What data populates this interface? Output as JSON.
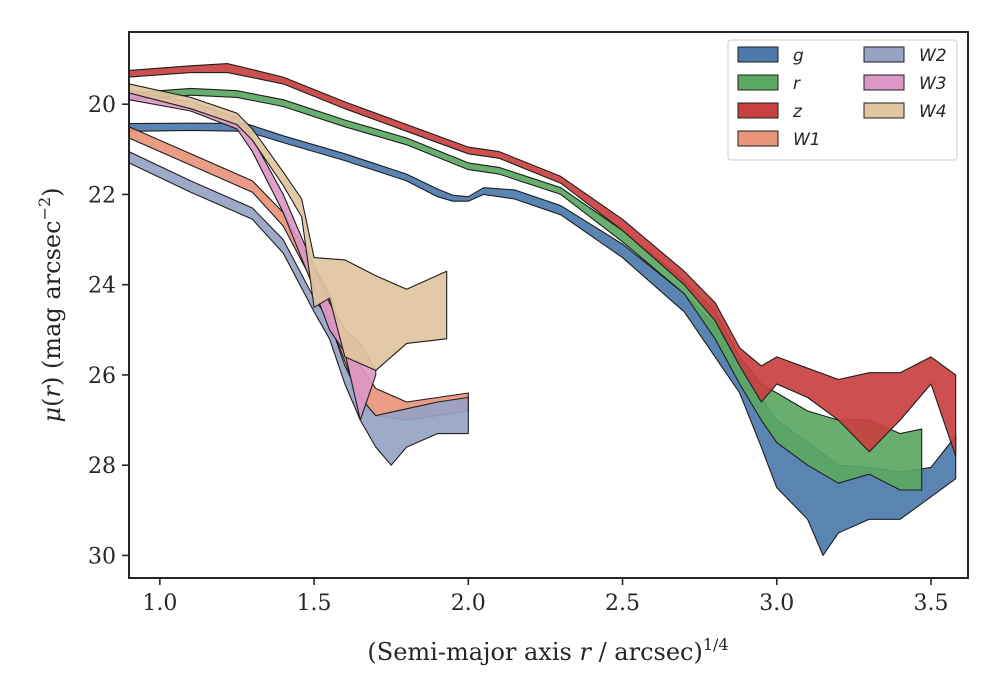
{
  "chart_data": {
    "type": "area",
    "xlabel": "(Semi-major axis r / arcsec)^{1/4}",
    "ylabel": "μ(r) (mag arcsec⁻²)",
    "xlim": [
      0.9,
      3.62
    ],
    "ylim": [
      30.5,
      18.4
    ],
    "y_inverted": true,
    "x_ticks": [
      "1.0",
      "1.5",
      "2.0",
      "2.5",
      "3.0",
      "3.5"
    ],
    "x_tick_values": [
      1.0,
      1.5,
      2.0,
      2.5,
      3.0,
      3.5
    ],
    "y_ticks": [
      "20",
      "22",
      "24",
      "26",
      "28",
      "30"
    ],
    "y_tick_values": [
      20,
      22,
      24,
      26,
      28,
      30
    ],
    "grid": false,
    "legend_position": "top-right",
    "legend_columns": 2,
    "series": [
      {
        "name": "g",
        "color": "#4c7aab",
        "upper": [
          [
            0.9,
            20.43
          ],
          [
            1.1,
            20.42
          ],
          [
            1.28,
            20.43
          ],
          [
            1.4,
            20.7
          ],
          [
            1.6,
            21.1
          ],
          [
            1.8,
            21.55
          ],
          [
            1.9,
            21.88
          ],
          [
            1.95,
            22.02
          ],
          [
            2.0,
            22.05
          ],
          [
            2.05,
            21.85
          ],
          [
            2.15,
            21.9
          ],
          [
            2.3,
            22.25
          ],
          [
            2.5,
            23.1
          ],
          [
            2.7,
            24.2
          ],
          [
            2.8,
            24.9
          ],
          [
            2.88,
            25.7
          ],
          [
            2.95,
            26.5
          ],
          [
            3.0,
            27.0
          ],
          [
            3.1,
            27.5
          ],
          [
            3.2,
            28.0
          ],
          [
            3.3,
            28.05
          ],
          [
            3.4,
            28.15
          ],
          [
            3.5,
            28.05
          ],
          [
            3.58,
            27.35
          ]
        ],
        "lower": [
          [
            3.58,
            28.3
          ],
          [
            3.5,
            28.7
          ],
          [
            3.4,
            29.2
          ],
          [
            3.3,
            29.2
          ],
          [
            3.2,
            29.5
          ],
          [
            3.15,
            30.0
          ],
          [
            3.1,
            29.2
          ],
          [
            3.0,
            28.5
          ],
          [
            2.95,
            27.6
          ],
          [
            2.88,
            26.4
          ],
          [
            2.8,
            25.6
          ],
          [
            2.7,
            24.6
          ],
          [
            2.5,
            23.4
          ],
          [
            2.3,
            22.45
          ],
          [
            2.15,
            22.1
          ],
          [
            2.05,
            22.0
          ],
          [
            2.0,
            22.15
          ],
          [
            1.95,
            22.15
          ],
          [
            1.9,
            22.05
          ],
          [
            1.8,
            21.7
          ],
          [
            1.6,
            21.25
          ],
          [
            1.4,
            20.85
          ],
          [
            1.28,
            20.6
          ],
          [
            1.1,
            20.58
          ],
          [
            0.9,
            20.6
          ]
        ]
      },
      {
        "name": "r",
        "color": "#5ba863",
        "upper": [
          [
            0.9,
            19.75
          ],
          [
            1.1,
            19.65
          ],
          [
            1.25,
            19.7
          ],
          [
            1.4,
            19.9
          ],
          [
            1.6,
            20.35
          ],
          [
            1.8,
            20.75
          ],
          [
            2.0,
            21.3
          ],
          [
            2.1,
            21.4
          ],
          [
            2.3,
            21.85
          ],
          [
            2.5,
            22.8
          ],
          [
            2.7,
            23.9
          ],
          [
            2.8,
            24.6
          ],
          [
            2.88,
            25.6
          ],
          [
            2.95,
            26.2
          ],
          [
            3.0,
            26.4
          ],
          [
            3.1,
            26.8
          ],
          [
            3.2,
            27.0
          ],
          [
            3.3,
            27.0
          ],
          [
            3.4,
            27.3
          ],
          [
            3.47,
            27.2
          ]
        ],
        "lower": [
          [
            3.47,
            28.55
          ],
          [
            3.4,
            28.55
          ],
          [
            3.3,
            28.2
          ],
          [
            3.2,
            28.4
          ],
          [
            3.1,
            28.0
          ],
          [
            3.0,
            27.5
          ],
          [
            2.95,
            27.0
          ],
          [
            2.88,
            26.2
          ],
          [
            2.8,
            25.2
          ],
          [
            2.7,
            24.2
          ],
          [
            2.5,
            23.05
          ],
          [
            2.3,
            22.0
          ],
          [
            2.1,
            21.55
          ],
          [
            2.0,
            21.45
          ],
          [
            1.8,
            20.9
          ],
          [
            1.6,
            20.5
          ],
          [
            1.4,
            20.05
          ],
          [
            1.25,
            19.85
          ],
          [
            1.1,
            19.8
          ],
          [
            0.9,
            19.9
          ]
        ]
      },
      {
        "name": "z",
        "color": "#c94040",
        "upper": [
          [
            0.9,
            19.25
          ],
          [
            1.1,
            19.15
          ],
          [
            1.22,
            19.1
          ],
          [
            1.4,
            19.4
          ],
          [
            1.6,
            19.95
          ],
          [
            1.8,
            20.45
          ],
          [
            2.0,
            20.95
          ],
          [
            2.1,
            21.05
          ],
          [
            2.3,
            21.6
          ],
          [
            2.5,
            22.55
          ],
          [
            2.7,
            23.7
          ],
          [
            2.8,
            24.4
          ],
          [
            2.88,
            25.4
          ],
          [
            2.95,
            25.8
          ],
          [
            3.0,
            25.6
          ],
          [
            3.1,
            25.85
          ],
          [
            3.2,
            26.1
          ],
          [
            3.3,
            25.95
          ],
          [
            3.4,
            25.95
          ],
          [
            3.5,
            25.6
          ],
          [
            3.58,
            26.0
          ]
        ],
        "lower": [
          [
            3.58,
            27.8
          ],
          [
            3.5,
            26.2
          ],
          [
            3.4,
            27.0
          ],
          [
            3.3,
            27.7
          ],
          [
            3.2,
            27.0
          ],
          [
            3.1,
            26.5
          ],
          [
            3.0,
            26.2
          ],
          [
            2.95,
            26.6
          ],
          [
            2.88,
            25.8
          ],
          [
            2.8,
            24.8
          ],
          [
            2.7,
            24.0
          ],
          [
            2.5,
            22.8
          ],
          [
            2.3,
            21.75
          ],
          [
            2.1,
            21.2
          ],
          [
            2.0,
            21.1
          ],
          [
            1.8,
            20.6
          ],
          [
            1.6,
            20.1
          ],
          [
            1.4,
            19.55
          ],
          [
            1.22,
            19.3
          ],
          [
            1.1,
            19.3
          ],
          [
            0.9,
            19.4
          ]
        ]
      },
      {
        "name": "W1",
        "color": "#e8957a",
        "upper": [
          [
            0.9,
            20.5
          ],
          [
            1.1,
            21.1
          ],
          [
            1.3,
            21.7
          ],
          [
            1.4,
            22.4
          ],
          [
            1.5,
            23.6
          ],
          [
            1.55,
            24.2
          ],
          [
            1.6,
            25.3
          ],
          [
            1.65,
            25.8
          ],
          [
            1.7,
            26.3
          ],
          [
            1.8,
            26.6
          ],
          [
            1.9,
            26.5
          ],
          [
            2.0,
            26.4
          ]
        ],
        "lower": [
          [
            2.0,
            26.8
          ],
          [
            1.9,
            26.9
          ],
          [
            1.8,
            27.0
          ],
          [
            1.7,
            26.9
          ],
          [
            1.65,
            26.6
          ],
          [
            1.6,
            25.7
          ],
          [
            1.55,
            24.8
          ],
          [
            1.5,
            24.0
          ],
          [
            1.4,
            22.7
          ],
          [
            1.3,
            21.95
          ],
          [
            1.1,
            21.35
          ],
          [
            0.9,
            20.75
          ]
        ]
      },
      {
        "name": "W2",
        "color": "#97a3c4",
        "upper": [
          [
            0.9,
            21.05
          ],
          [
            1.1,
            21.7
          ],
          [
            1.3,
            22.3
          ],
          [
            1.4,
            23.0
          ],
          [
            1.5,
            24.3
          ],
          [
            1.55,
            24.8
          ],
          [
            1.6,
            25.8
          ],
          [
            1.65,
            26.5
          ],
          [
            1.7,
            26.9
          ],
          [
            1.8,
            26.75
          ],
          [
            1.9,
            26.6
          ],
          [
            2.0,
            26.5
          ]
        ],
        "lower": [
          [
            2.0,
            27.3
          ],
          [
            1.9,
            27.3
          ],
          [
            1.8,
            27.6
          ],
          [
            1.75,
            28.0
          ],
          [
            1.7,
            27.6
          ],
          [
            1.65,
            27.0
          ],
          [
            1.6,
            26.2
          ],
          [
            1.55,
            25.2
          ],
          [
            1.5,
            24.6
          ],
          [
            1.4,
            23.3
          ],
          [
            1.3,
            22.55
          ],
          [
            1.1,
            21.95
          ],
          [
            0.9,
            21.3
          ]
        ]
      },
      {
        "name": "W3",
        "color": "#dc98c6",
        "upper": [
          [
            0.9,
            19.7
          ],
          [
            1.1,
            19.95
          ],
          [
            1.25,
            20.3
          ],
          [
            1.3,
            20.75
          ],
          [
            1.4,
            22.0
          ],
          [
            1.5,
            23.6
          ],
          [
            1.55,
            24.4
          ],
          [
            1.6,
            25.0
          ],
          [
            1.65,
            25.3
          ],
          [
            1.7,
            25.9
          ]
        ],
        "lower": [
          [
            1.7,
            26.0
          ],
          [
            1.65,
            27.0
          ],
          [
            1.6,
            25.5
          ],
          [
            1.55,
            25.0
          ],
          [
            1.5,
            24.1
          ],
          [
            1.4,
            22.4
          ],
          [
            1.3,
            21.05
          ],
          [
            1.25,
            20.55
          ],
          [
            1.1,
            20.15
          ],
          [
            0.9,
            19.9
          ]
        ]
      },
      {
        "name": "W4",
        "color": "#dfc4a0",
        "upper": [
          [
            0.9,
            19.55
          ],
          [
            1.1,
            19.85
          ],
          [
            1.25,
            20.2
          ],
          [
            1.3,
            20.55
          ],
          [
            1.4,
            21.5
          ],
          [
            1.46,
            22.1
          ],
          [
            1.5,
            23.4
          ],
          [
            1.6,
            23.45
          ],
          [
            1.7,
            23.8
          ],
          [
            1.8,
            24.1
          ],
          [
            1.93,
            23.7
          ]
        ],
        "lower": [
          [
            1.93,
            25.2
          ],
          [
            1.8,
            25.3
          ],
          [
            1.7,
            25.9
          ],
          [
            1.6,
            25.6
          ],
          [
            1.55,
            24.3
          ],
          [
            1.5,
            24.5
          ],
          [
            1.46,
            22.5
          ],
          [
            1.4,
            21.8
          ],
          [
            1.3,
            20.8
          ],
          [
            1.25,
            20.45
          ],
          [
            1.1,
            20.1
          ],
          [
            0.9,
            19.75
          ]
        ]
      }
    ]
  }
}
